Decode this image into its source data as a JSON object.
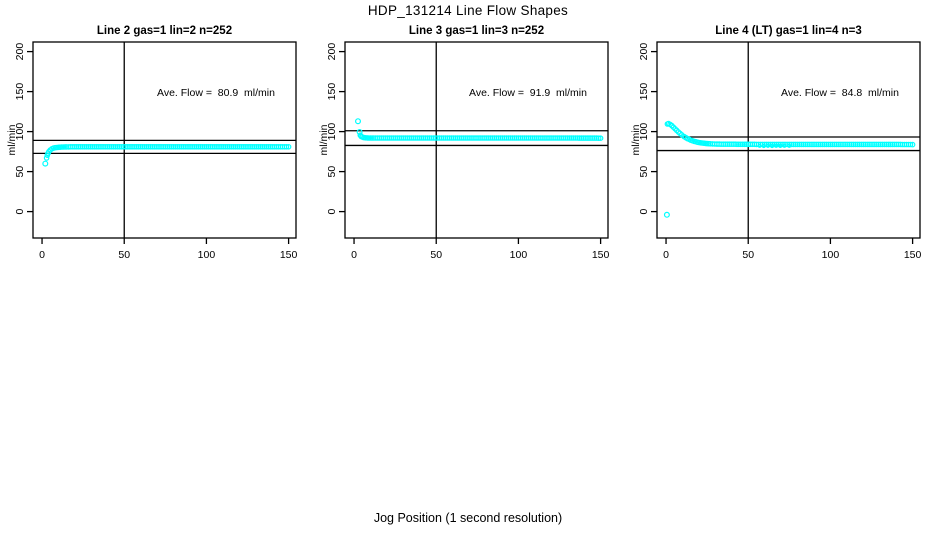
{
  "chart_data": {
    "type": "scatter",
    "title": "HDP_131214  Line Flow Shapes",
    "xlabel": "Jog Position (1 second resolution)",
    "ylabel": "ml/min",
    "xlim": [
      0,
      150
    ],
    "ylim": [
      0,
      200
    ],
    "x_ticks": [
      0,
      50,
      100,
      150
    ],
    "y_ticks": [
      0,
      50,
      100,
      150,
      200
    ],
    "marker_color": "#00FFFF",
    "axis_color": "#000000",
    "grid": false,
    "legend": "none",
    "panels": [
      {
        "title": "Line 2 gas=1 lin=2 n=252",
        "ave_label": "Ave. Flow =  80.9  ml/min",
        "ave_flow": 80.9,
        "hlines": [
          88.99,
          72.81
        ],
        "vline": 50,
        "outliers": [
          [
            2,
            60
          ]
        ],
        "series": [
          [
            2.8,
            67
          ],
          [
            3.2,
            70.5
          ],
          [
            3.7,
            73
          ],
          [
            4.2,
            75
          ],
          [
            5,
            77
          ],
          [
            6,
            78.5
          ],
          [
            7,
            79.4
          ],
          [
            8,
            79.9
          ],
          [
            10,
            80.4
          ],
          [
            12,
            80.7
          ],
          [
            15,
            80.9
          ],
          [
            20,
            81
          ],
          [
            40,
            81
          ],
          [
            60,
            81
          ],
          [
            80,
            81
          ],
          [
            100,
            81
          ],
          [
            120,
            81
          ],
          [
            140,
            81
          ],
          [
            150,
            81
          ]
        ],
        "scatter": []
      },
      {
        "title": "Line 3 gas=1 lin=3 n=252",
        "ave_label": "Ave. Flow =  91.9  ml/min",
        "ave_flow": 91.9,
        "hlines": [
          101.09,
          82.71
        ],
        "vline": 50,
        "outliers": [
          [
            2.4,
            113
          ],
          [
            3.4,
            99.5
          ]
        ],
        "series": [
          [
            3.8,
            95.5
          ],
          [
            4.3,
            94
          ],
          [
            5,
            93.2
          ],
          [
            6,
            92.5
          ],
          [
            7,
            92.2
          ],
          [
            9,
            92
          ],
          [
            12,
            92
          ],
          [
            40,
            92
          ],
          [
            70,
            92
          ],
          [
            100,
            92
          ],
          [
            130,
            92
          ],
          [
            150,
            91.8
          ]
        ],
        "scatter": []
      },
      {
        "title": "Line 4 (LT) gas=1 lin=4 n=3",
        "ave_label": "Ave. Flow =  84.8  ml/min",
        "ave_flow": 84.8,
        "hlines": [
          93.28,
          76.32
        ],
        "vline": 50,
        "outliers": [
          [
            0.5,
            -4
          ]
        ],
        "series": [
          [
            0.8,
            109.5
          ],
          [
            1.5,
            110
          ],
          [
            2.5,
            109
          ],
          [
            3.5,
            107.5
          ],
          [
            4.5,
            105.5
          ],
          [
            5.5,
            103.5
          ],
          [
            6.5,
            101.5
          ],
          [
            7.5,
            99.5
          ],
          [
            8.5,
            97.7
          ],
          [
            9.5,
            96
          ],
          [
            11,
            93.7
          ],
          [
            13,
            91.3
          ],
          [
            15,
            89.4
          ],
          [
            17,
            87.9
          ],
          [
            19,
            86.8
          ],
          [
            21,
            86
          ],
          [
            24,
            85.2
          ],
          [
            27,
            84.7
          ],
          [
            31,
            84.4
          ],
          [
            36,
            84.2
          ],
          [
            42,
            84.2
          ],
          [
            50,
            84.1
          ],
          [
            60,
            84
          ],
          [
            80,
            84
          ],
          [
            100,
            84
          ],
          [
            120,
            84
          ],
          [
            140,
            84
          ],
          [
            150,
            83.8
          ]
        ],
        "scatter": [
          [
            57,
            82.2
          ],
          [
            59.5,
            82
          ],
          [
            62,
            82.3
          ],
          [
            64.5,
            82
          ],
          [
            67,
            82.2
          ],
          [
            69.5,
            82.1
          ],
          [
            72,
            82.3
          ],
          [
            75,
            82.2
          ]
        ]
      }
    ]
  }
}
